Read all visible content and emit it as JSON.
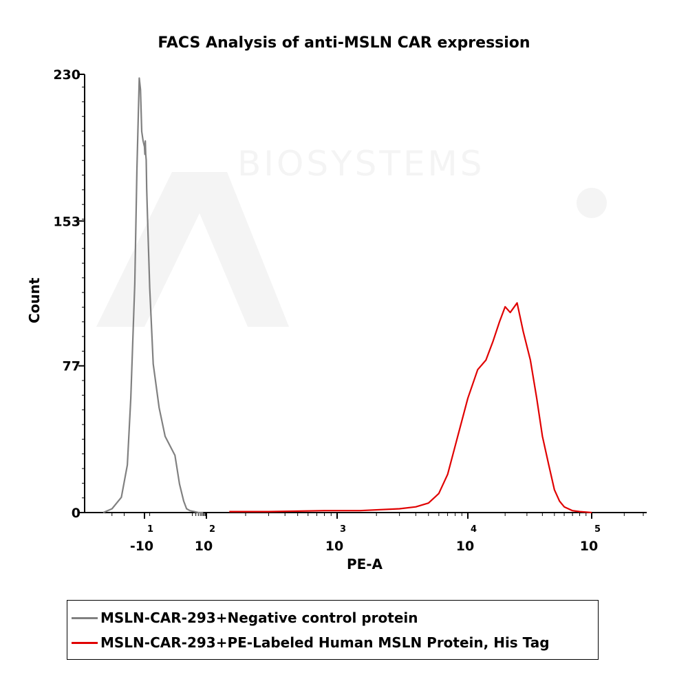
{
  "chart_data": {
    "type": "area",
    "title": "FACS Analysis of anti-MSLN CAR expression",
    "xlabel": "PE-A",
    "ylabel": "Count",
    "x_scale": "biexponential",
    "y_ticks": [
      0,
      77,
      153,
      230
    ],
    "ylim": [
      0,
      230
    ],
    "x_ticks": [
      {
        "base": "-10",
        "exp": "1",
        "value": -10
      },
      {
        "base": "10",
        "exp": "2",
        "value": 100
      },
      {
        "base": "10",
        "exp": "3",
        "value": 1000
      },
      {
        "base": "10",
        "exp": "4",
        "value": 10000
      },
      {
        "base": "10",
        "exp": "5",
        "value": 100000
      }
    ],
    "series": [
      {
        "name": "MSLN-CAR-293+Negative control protein",
        "color": "#808080",
        "x": [
          -40,
          -30,
          -22,
          -18,
          -16,
          -14,
          -13,
          -12,
          -11.5,
          -11,
          -10.5,
          -10,
          -9.5,
          -9,
          -8.5,
          -8,
          -7.5,
          -7,
          -6,
          -5,
          -4,
          -3,
          -1,
          0,
          2,
          4,
          7,
          10,
          15,
          25,
          40,
          70
        ],
        "y": [
          0,
          2,
          8,
          25,
          60,
          120,
          180,
          228,
          222,
          200,
          195,
          192,
          188,
          195,
          188,
          185,
          170,
          160,
          140,
          118,
          100,
          78,
          55,
          40,
          30,
          15,
          6,
          2,
          1,
          0.5,
          0,
          0
        ]
      },
      {
        "name": "MSLN-CAR-293+PE-Labeled Human MSLN Protein, His Tag",
        "color": "#e00000",
        "x": [
          150,
          300,
          800,
          1500,
          3000,
          4000,
          5000,
          6000,
          7000,
          8000,
          10000,
          12000,
          14000,
          16000,
          18000,
          20000,
          22000,
          25000,
          28000,
          32000,
          36000,
          40000,
          45000,
          50000,
          55000,
          60000,
          70000,
          80000,
          100000
        ],
        "y": [
          0.5,
          0.5,
          1,
          1,
          2,
          3,
          5,
          10,
          20,
          35,
          60,
          75,
          80,
          90,
          100,
          108,
          105,
          110,
          95,
          80,
          60,
          40,
          25,
          12,
          6,
          3,
          1,
          0.5,
          0
        ]
      }
    ]
  },
  "legend": [
    {
      "label": "MSLN-CAR-293+Negative control protein",
      "color": "#808080"
    },
    {
      "label": "MSLN-CAR-293+PE-Labeled Human MSLN Protein, His Tag",
      "color": "#e00000"
    }
  ],
  "watermark": {
    "brand": "Acro",
    "sub": "BIOSYSTEMS"
  }
}
